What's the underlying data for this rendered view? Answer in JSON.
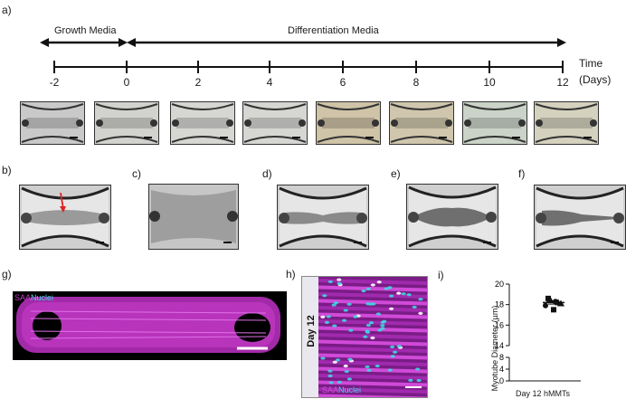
{
  "panels": {
    "a": "a)",
    "b": "b)",
    "c": "c)",
    "d": "d)",
    "e": "e)",
    "f": "f)",
    "g": "g)",
    "h": "h)",
    "i": "i)"
  },
  "timeline": {
    "growth_label": "Growth Media",
    "diff_label": "Differentiation Media",
    "ticks": [
      "-2",
      "0",
      "2",
      "4",
      "6",
      "8",
      "10",
      "12"
    ],
    "time_label_1": "Time",
    "time_label_2": "(Days)"
  },
  "thumbnails_tint": [
    "#c9c9c9",
    "#d2d2cf",
    "#d6d6d3",
    "#d6d6d3",
    "#cfc3a8",
    "#cfc6ad",
    "#cbd3c8",
    "#d4d1bf"
  ],
  "panel_g": {
    "label_saa": "SAA",
    "label_nuclei": "Nuclei"
  },
  "panel_h": {
    "day": "Day 12",
    "label_saa": "SAA",
    "label_nuclei": "Nuclei"
  },
  "chart_data": {
    "type": "scatter",
    "ylabel": "Myotube Diameter (µm)",
    "categories": [
      "Day 12 hMMTs"
    ],
    "y_ticks_upper": [
      "20",
      "18",
      "16",
      "14"
    ],
    "y_ticks_lower": [
      "8",
      "4",
      "0"
    ],
    "ylim_upper": [
      14,
      20
    ],
    "ylim_lower": [
      0,
      8
    ],
    "points": [
      {
        "y": 18.6,
        "marker": "square"
      },
      {
        "y": 18.3,
        "marker": "circle"
      },
      {
        "y": 18.1,
        "marker": "triangle"
      },
      {
        "y": 18.5,
        "marker": "triangle"
      },
      {
        "y": 17.9,
        "marker": "circle"
      },
      {
        "y": 17.5,
        "marker": "square"
      },
      {
        "y": 18.2,
        "marker": "triangle"
      }
    ],
    "mean": 18.2,
    "sem": 0.15
  },
  "colors": {
    "saa": "#c43cc8",
    "nuclei": "#3fd6e0",
    "arrow": "#e02020"
  }
}
